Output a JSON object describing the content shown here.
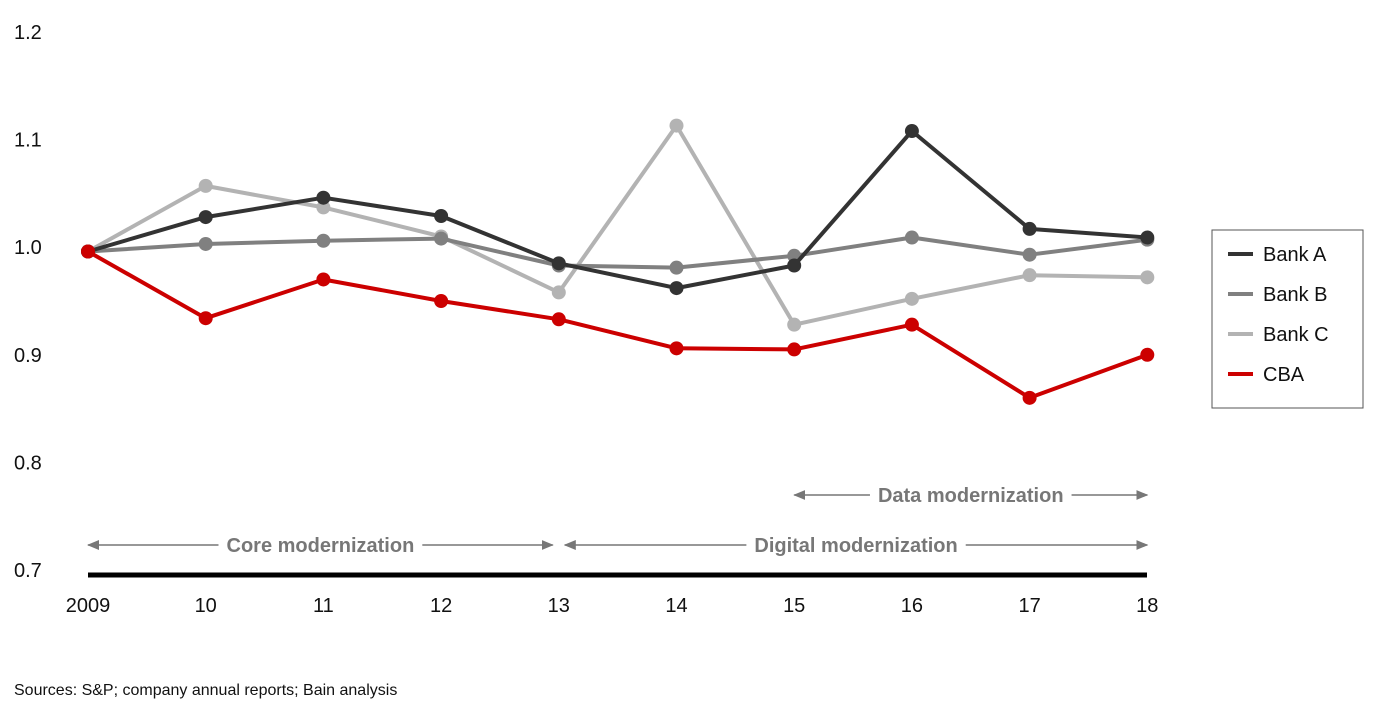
{
  "chart_data": {
    "type": "line",
    "x": [
      "2009",
      "10",
      "11",
      "12",
      "13",
      "14",
      "15",
      "16",
      "17",
      "18"
    ],
    "ylim": [
      0.7,
      1.2
    ],
    "yticks": [
      "0.7",
      "0.8",
      "0.9",
      "1.0",
      "1.1",
      "1.2"
    ],
    "grid": false,
    "legend_position": "right",
    "series": [
      {
        "name": "Bank A",
        "color": "#333333",
        "values": [
          0.996,
          1.028,
          1.046,
          1.029,
          0.985,
          0.962,
          0.983,
          1.108,
          1.017,
          1.009
        ]
      },
      {
        "name": "Bank B",
        "color": "#808080",
        "values": [
          0.996,
          1.003,
          1.006,
          1.008,
          0.983,
          0.981,
          0.992,
          1.009,
          0.993,
          1.007
        ]
      },
      {
        "name": "Bank C",
        "color": "#b3b3b3",
        "values": [
          0.996,
          1.057,
          1.037,
          1.01,
          0.958,
          1.113,
          0.928,
          0.952,
          0.974,
          0.972
        ]
      },
      {
        "name": "CBA",
        "color": "#cc0000",
        "values": [
          0.996,
          0.934,
          0.97,
          0.95,
          0.933,
          0.906,
          0.905,
          0.928,
          0.86,
          0.9
        ]
      }
    ],
    "annotations": [
      {
        "text": "Core modernization",
        "from": "2009",
        "to": "13",
        "color": "#777777"
      },
      {
        "text": "Digital modernization",
        "from": "13",
        "to": "18",
        "color": "#777777"
      },
      {
        "text": "Data modernization",
        "from": "15",
        "to": "18",
        "color": "#777777"
      }
    ]
  },
  "footer": {
    "source": "Sources: S&P; company annual reports; Bain analysis"
  }
}
